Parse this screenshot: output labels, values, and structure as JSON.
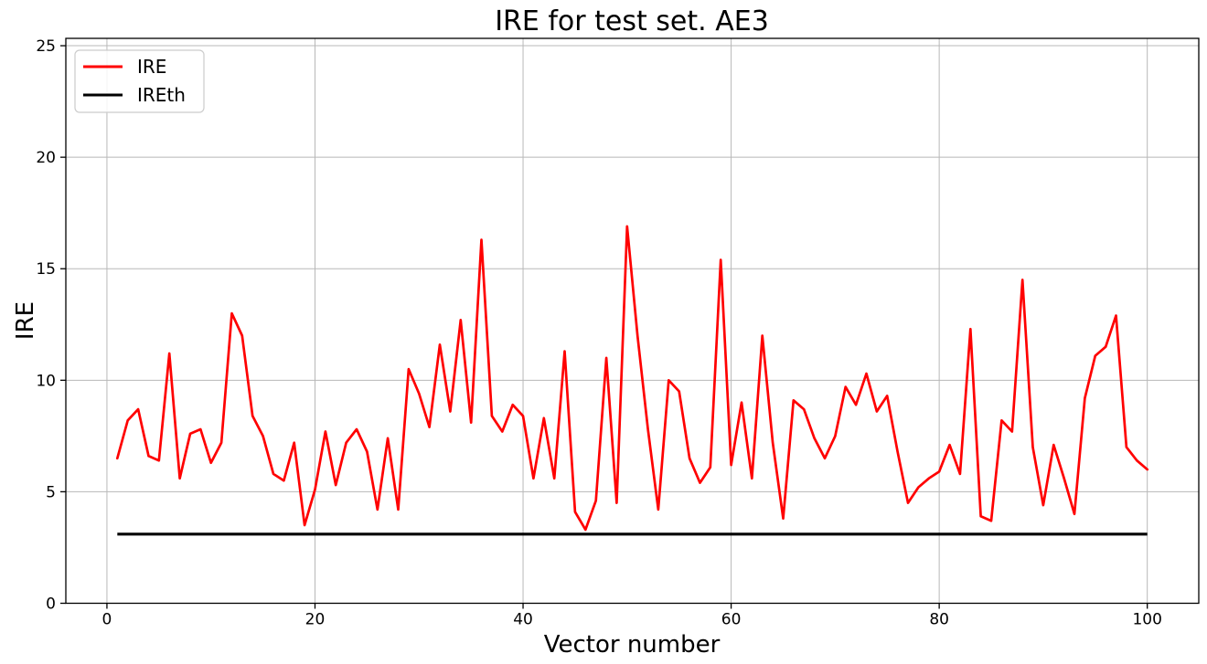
{
  "chart_data": {
    "type": "line",
    "title": "IRE for test set. AE3",
    "xlabel": "Vector number",
    "ylabel": "IRE",
    "x_start": 1,
    "x_step": 1,
    "series": [
      {
        "name": "IRE",
        "color": "#ff0000",
        "values": [
          6.5,
          8.2,
          8.7,
          6.6,
          6.4,
          11.2,
          5.6,
          7.6,
          7.8,
          6.3,
          7.2,
          13.0,
          12.0,
          8.4,
          7.5,
          5.8,
          5.5,
          7.2,
          3.5,
          5.1,
          7.7,
          5.3,
          7.2,
          7.8,
          6.8,
          4.2,
          7.4,
          4.2,
          10.5,
          9.4,
          7.9,
          11.6,
          8.6,
          12.7,
          8.1,
          16.3,
          8.4,
          7.7,
          8.9,
          8.4,
          5.6,
          8.3,
          5.6,
          11.3,
          4.1,
          3.3,
          4.6,
          11.0,
          4.5,
          16.9,
          12.0,
          7.8,
          4.2,
          10.0,
          9.5,
          6.5,
          5.4,
          6.1,
          15.4,
          6.2,
          9.0,
          5.6,
          12.0,
          7.2,
          3.8,
          9.1,
          8.7,
          7.4,
          6.5,
          7.5,
          9.7,
          8.9,
          10.3,
          8.6,
          9.3,
          6.8,
          4.5,
          5.2,
          5.6,
          5.9,
          7.1,
          5.8,
          12.3,
          3.9,
          3.7,
          8.2,
          7.7,
          14.5,
          7.0,
          4.4,
          7.1,
          5.6,
          4.0,
          9.2,
          11.1,
          11.5,
          12.9,
          7.0,
          6.4,
          6.0
        ]
      },
      {
        "name": "IREth",
        "color": "#000000",
        "constant": 3.1,
        "x_range": [
          1,
          100
        ]
      }
    ],
    "x_ticks": [
      "0",
      "20",
      "40",
      "60",
      "80",
      "100"
    ],
    "y_ticks": [
      "0",
      "5",
      "10",
      "15",
      "20",
      "25"
    ],
    "xlim": [
      -3.95,
      104.95
    ],
    "ylim": [
      0,
      25.33
    ],
    "grid": true,
    "legend_position": "upper left"
  },
  "legend": {
    "items": [
      {
        "label": "IRE",
        "color": "#ff0000"
      },
      {
        "label": "IREth",
        "color": "#000000"
      }
    ]
  },
  "colors": {
    "ire_line": "#ff0000",
    "ireth_line": "#000000",
    "grid": "#b8b8b8",
    "spine": "#000000",
    "background": "#ffffff",
    "legend_border": "#cccccc"
  }
}
